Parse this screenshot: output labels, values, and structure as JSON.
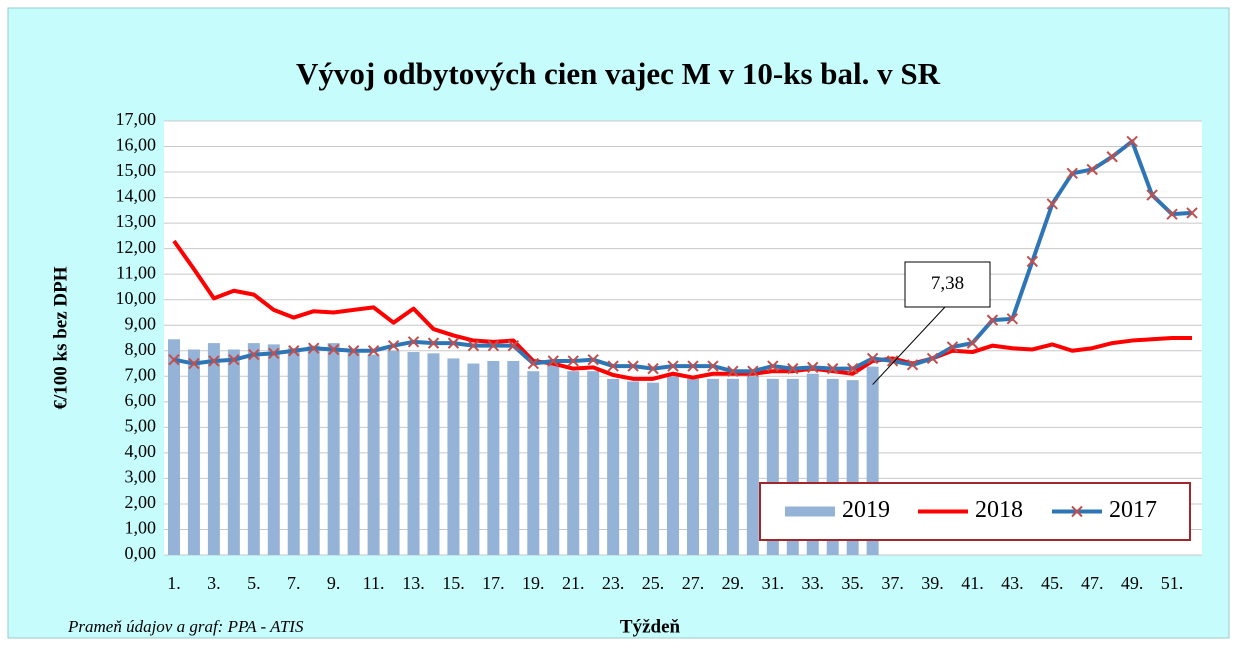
{
  "chart_data": {
    "type": "bar-line",
    "title": "Vývoj odbytových cien vajec M v 10-ks bal. v SR",
    "xlabel": "Týždeň",
    "ylabel": "€/100 ks bez DPH",
    "source": "Prameň údajov a graf: PPA - ATIS",
    "categories": [
      "1.",
      null,
      "3.",
      null,
      "5.",
      null,
      "7.",
      null,
      "9.",
      null,
      "11.",
      null,
      "13.",
      null,
      "15.",
      null,
      "17.",
      null,
      "19.",
      null,
      "21.",
      null,
      "23.",
      null,
      "25.",
      null,
      "27.",
      null,
      "29.",
      null,
      "31.",
      null,
      "33.",
      null,
      "35.",
      null,
      "37.",
      null,
      "39.",
      null,
      "41.",
      null,
      "43.",
      null,
      "45.",
      null,
      "47.",
      null,
      "49.",
      null,
      "51.",
      null
    ],
    "ylim": [
      0,
      17
    ],
    "yticks": [
      {
        "value": 0,
        "label": "0,00"
      },
      {
        "value": 1,
        "label": "1,00"
      },
      {
        "value": 2,
        "label": "2,00"
      },
      {
        "value": 3,
        "label": "3,00"
      },
      {
        "value": 4,
        "label": "4,00"
      },
      {
        "value": 5,
        "label": "5,00"
      },
      {
        "value": 6,
        "label": "6,00"
      },
      {
        "value": 7,
        "label": "7,00"
      },
      {
        "value": 8,
        "label": "8,00"
      },
      {
        "value": 9,
        "label": "9,00"
      },
      {
        "value": 10,
        "label": "10,00"
      },
      {
        "value": 11,
        "label": "11,00"
      },
      {
        "value": 12,
        "label": "12,00"
      },
      {
        "value": 13,
        "label": "13,00"
      },
      {
        "value": 14,
        "label": "14,00"
      },
      {
        "value": 15,
        "label": "15,00"
      },
      {
        "value": 16,
        "label": "16,00"
      },
      {
        "value": 17,
        "label": "17,00"
      }
    ],
    "grid": true,
    "legend": "lower right",
    "series": [
      {
        "name": "2019",
        "kind": "bar",
        "color": "#95b3d7",
        "values": [
          8.45,
          8.05,
          8.3,
          8.05,
          8.3,
          8.25,
          8.1,
          8.2,
          8.3,
          8.0,
          7.85,
          8.0,
          7.95,
          7.9,
          7.7,
          7.5,
          7.6,
          7.6,
          7.2,
          7.6,
          7.2,
          7.2,
          6.9,
          6.8,
          6.75,
          7.0,
          6.9,
          6.9,
          6.9,
          7.0,
          6.9,
          6.9,
          7.1,
          6.9,
          6.85,
          7.38,
          null,
          null,
          null,
          null,
          null,
          null,
          null,
          null,
          null,
          null,
          null,
          null,
          null,
          null,
          null,
          null
        ],
        "value_labels": [
          null,
          null,
          null,
          null,
          null,
          null,
          null,
          null,
          null,
          null,
          null,
          null,
          null,
          null,
          null,
          null,
          null,
          null,
          null,
          null,
          null,
          null,
          null,
          null,
          null,
          null,
          null,
          null,
          null,
          null,
          null,
          null,
          null,
          null,
          null,
          "7,38",
          null,
          null,
          null,
          null,
          null,
          null,
          null,
          null,
          null,
          null,
          null,
          null,
          null,
          null,
          null,
          null
        ]
      },
      {
        "name": "2018",
        "kind": "line",
        "color": "#ff0000",
        "values": [
          12.3,
          11.2,
          10.05,
          10.35,
          10.2,
          9.6,
          9.3,
          9.55,
          9.5,
          9.6,
          9.7,
          9.1,
          9.65,
          8.85,
          8.6,
          8.4,
          8.35,
          8.4,
          7.6,
          7.5,
          7.3,
          7.35,
          7.05,
          6.9,
          6.9,
          7.1,
          6.95,
          7.1,
          7.1,
          7.1,
          7.2,
          7.2,
          7.3,
          7.2,
          7.1,
          7.6,
          7.7,
          7.5,
          7.7,
          8.0,
          7.95,
          8.2,
          8.1,
          8.05,
          8.25,
          8.0,
          8.1,
          8.3,
          8.4,
          8.45,
          8.5,
          8.5
        ]
      },
      {
        "name": "2017",
        "kind": "line",
        "color": "#2e75b6",
        "marker_color": "#c0504d",
        "values": [
          7.65,
          7.5,
          7.6,
          7.65,
          7.85,
          7.9,
          8.0,
          8.1,
          8.05,
          8.0,
          8.0,
          8.2,
          8.35,
          8.3,
          8.3,
          8.2,
          8.2,
          8.2,
          7.5,
          7.6,
          7.6,
          7.65,
          7.4,
          7.4,
          7.3,
          7.4,
          7.4,
          7.4,
          7.2,
          7.2,
          7.4,
          7.3,
          7.35,
          7.3,
          7.3,
          7.7,
          7.6,
          7.45,
          7.7,
          8.15,
          8.3,
          9.2,
          9.25,
          11.5,
          13.75,
          14.95,
          15.1,
          15.6,
          16.2,
          14.1,
          13.35,
          13.4
        ]
      }
    ]
  }
}
